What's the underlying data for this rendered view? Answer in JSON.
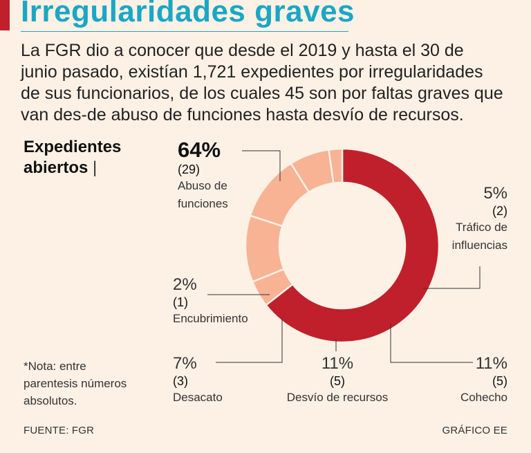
{
  "title": "Irregularidades graves",
  "intro": "La FGR dio a conocer que desde el 2019 y hasta el 30 de junio pasado, existían 1,721 expedientes por irregularidades de sus funcionarios, de los cuales 45 son por faltas graves que van des-de abuso de funciones hasta desvío de recursos.",
  "section_title_line1": "Expedientes",
  "section_title_line2": "abiertos",
  "section_bar": "|",
  "note_line1": "*Nota: entre",
  "note_line2": "parentesis números",
  "note_line3": "absolutos.",
  "source": "FUENTE: FGR",
  "credit": "GRÁFICO EE",
  "colors": {
    "title": "#1aa7c4",
    "accent": "#c0202b",
    "main_slice": "#c0202b",
    "other_slices": "#f7b393",
    "background": "#fdf1e6"
  },
  "chart_data": {
    "type": "pie",
    "variant": "donut",
    "start": "top",
    "direction": "clockwise",
    "slices": [
      {
        "name": "Abuso de funciones",
        "value": 29,
        "percent": "64%",
        "count": "(29)",
        "label_line1": "Abuso de",
        "label_line2": "funciones",
        "color": "#c0202b"
      },
      {
        "name": "Tráfico de influencias",
        "value": 2,
        "percent": "5%",
        "count": "(2)",
        "label_line1": "Tráfico de",
        "label_line2": "influencias",
        "color": "#f7b393"
      },
      {
        "name": "Cohecho",
        "value": 5,
        "percent": "11%",
        "count": "(5)",
        "label_line1": "Cohecho",
        "color": "#f7b393"
      },
      {
        "name": "Desvío de recursos",
        "value": 5,
        "percent": "11%",
        "count": "(5)",
        "label_line1": "Desvío de recursos",
        "color": "#f7b393"
      },
      {
        "name": "Desacato",
        "value": 3,
        "percent": "7%",
        "count": "(3)",
        "label_line1": "Desacato",
        "color": "#f7b393"
      },
      {
        "name": "Encubrimiento",
        "value": 1,
        "percent": "2%",
        "count": "(1)",
        "label_line1": "Encubrimiento",
        "color": "#f7b393"
      }
    ]
  }
}
